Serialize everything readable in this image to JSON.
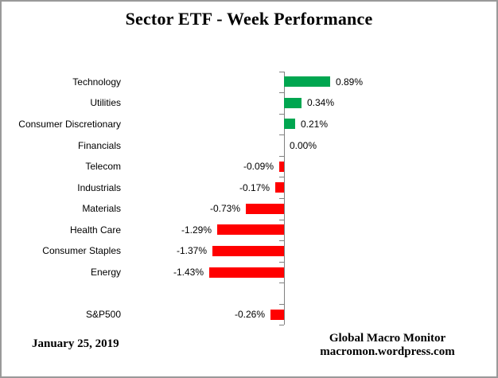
{
  "title": "Sector ETF - Week Performance",
  "footer": {
    "date": "January 25, 2019",
    "source_line1": "Global Macro Monitor",
    "source_line2": "macromon.wordpress.com"
  },
  "chart_data": {
    "type": "bar",
    "orientation": "horizontal",
    "title": "Sector ETF - Week Performance",
    "value_unit": "percent",
    "positive_color": "#00A650",
    "negative_color": "#FF0000",
    "axis_color": "#808080",
    "xlim": [
      -1.6,
      1.0
    ],
    "grid": false,
    "legend": false,
    "rows": [
      {
        "label": "Technology",
        "value": 0.89,
        "display": "0.89%"
      },
      {
        "label": "Utilities",
        "value": 0.34,
        "display": "0.34%"
      },
      {
        "label": "Consumer Discretionary",
        "value": 0.21,
        "display": "0.21%"
      },
      {
        "label": "Financials",
        "value": 0.0,
        "display": "0.00%"
      },
      {
        "label": "Telecom",
        "value": -0.09,
        "display": "-0.09%"
      },
      {
        "label": "Industrials",
        "value": -0.17,
        "display": "-0.17%"
      },
      {
        "label": "Materials",
        "value": -0.73,
        "display": "-0.73%"
      },
      {
        "label": "Health Care",
        "value": -1.29,
        "display": "-1.29%"
      },
      {
        "label": "Consumer Staples",
        "value": -1.37,
        "display": "-1.37%"
      },
      {
        "label": "Energy",
        "value": -1.43,
        "display": "-1.43%"
      },
      {
        "label": "",
        "value": null,
        "display": ""
      },
      {
        "label": "S&P500",
        "value": -0.26,
        "display": "-0.26%"
      }
    ]
  }
}
